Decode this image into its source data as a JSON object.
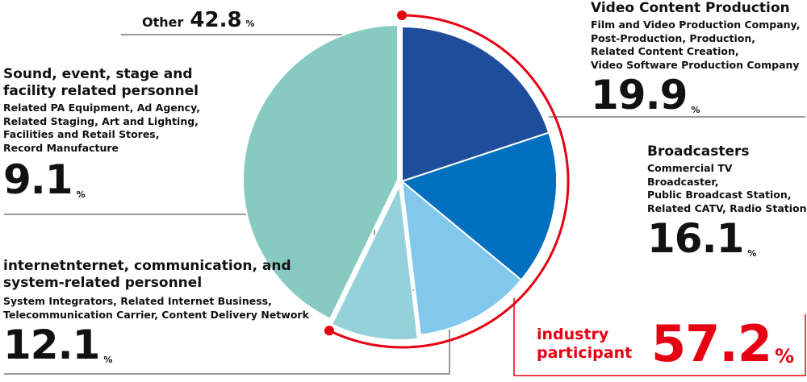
{
  "chart_data": {
    "type": "pie",
    "unit": "%",
    "slices": [
      {
        "title": "Video Content Production",
        "detail": "Film and Video Production Company,\nPost-Production, Production,\nRelated Content Creation,\nVideo Software Production Company",
        "value": 19.9,
        "value_label": "19.9",
        "color": "#1e4d9b"
      },
      {
        "title": "Broadcasters",
        "detail": "Commercial TV Broadcaster,\nPublic Broadcast Station,\nRelated CATV, Radio Station",
        "value": 16.1,
        "value_label": "16.1",
        "color": "#006fc0"
      },
      {
        "title": "internetnternet, communication, and\nsystem-related personnel",
        "detail": "System Integrators, Related Internet Business,\nTelecommunication Carrier, Content Delivery Network",
        "value": 12.1,
        "value_label": "12.1",
        "color": "#82c7ec"
      },
      {
        "title": "Sound, event, stage and\nfacility related personnel",
        "detail": "Related PA Equipment, Ad Agency,\nRelated Staging, Art and Lighting,\nFacilities and Retail Stores,\nRecord Manufacture",
        "value": 9.1,
        "value_label": "9.1",
        "color": "#94d1db"
      },
      {
        "title": "Other",
        "detail": "",
        "value": 42.8,
        "value_label": "42.8",
        "color": "#87cac2"
      }
    ],
    "highlight": {
      "label": "industry\nparticipant",
      "value": 57.2,
      "value_label": "57.2",
      "unit": "%",
      "color": "#e60012"
    }
  }
}
